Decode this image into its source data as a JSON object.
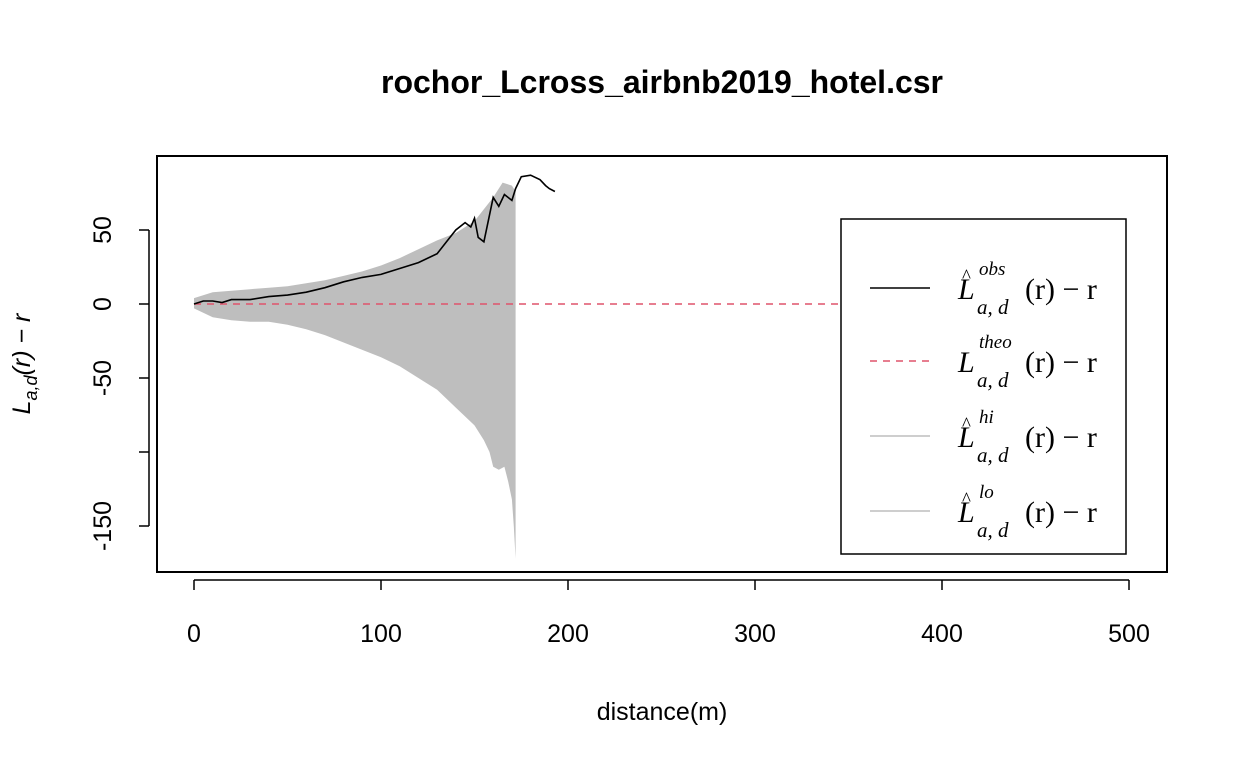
{
  "chart_data": {
    "type": "line",
    "title": "rochor_Lcross_airbnb2019_hotel.csr",
    "xlabel": "distance(m)",
    "ylabel": "L_{a,d}(r) - r",
    "xlim": [
      0,
      500
    ],
    "ylim": [
      -180,
      90
    ],
    "x_ticks": [
      0,
      100,
      200,
      300,
      400,
      500
    ],
    "x_tick_labels": [
      "0",
      "100",
      "200",
      "300",
      "400",
      "500"
    ],
    "y_ticks": [
      -150,
      -100,
      -50,
      0,
      50
    ],
    "y_tick_labels": [
      "-150",
      "",
      "-50",
      "0",
      "50"
    ],
    "grid": false,
    "legend_position": "right",
    "colors": {
      "obs": "#000000",
      "theo": "#DF536B",
      "envelope": "#BEBEBE"
    },
    "series": [
      {
        "name": "obs",
        "legend_math": {
          "base": "L",
          "hat": true,
          "sub": "a, d",
          "sup": "obs",
          "tail": "(r) − r"
        },
        "style": "solid",
        "x": [
          0,
          5,
          10,
          15,
          20,
          30,
          40,
          50,
          60,
          70,
          80,
          90,
          100,
          110,
          120,
          130,
          135,
          140,
          145,
          148,
          150,
          152,
          155,
          160,
          163,
          166,
          170,
          172,
          175,
          180,
          185,
          188,
          190,
          193
        ],
        "values": [
          0,
          2,
          2,
          1,
          3,
          3,
          5,
          6,
          8,
          11,
          15,
          18,
          20,
          24,
          28,
          34,
          42,
          50,
          55,
          52,
          58,
          45,
          42,
          72,
          66,
          74,
          70,
          78,
          86,
          87,
          84,
          80,
          78,
          76
        ]
      },
      {
        "name": "theo",
        "legend_math": {
          "base": "L",
          "hat": false,
          "sub": "a, d",
          "sup": "theo",
          "tail": "(r) − r"
        },
        "style": "dashed",
        "x": [
          0,
          470
        ],
        "values": [
          0,
          0
        ]
      },
      {
        "name": "hi",
        "legend_math": {
          "base": "L",
          "hat": true,
          "sub": "a, d",
          "sup": "hi",
          "tail": "(r) − r"
        },
        "style": "envelope",
        "x": [
          0,
          10,
          20,
          30,
          40,
          50,
          60,
          70,
          80,
          90,
          100,
          110,
          120,
          130,
          140,
          150,
          160,
          165,
          170,
          172
        ],
        "values": [
          4,
          8,
          9,
          10,
          11,
          12,
          14,
          16,
          19,
          22,
          26,
          31,
          37,
          43,
          48,
          56,
          72,
          82,
          80,
          76
        ]
      },
      {
        "name": "lo",
        "legend_math": {
          "base": "L",
          "hat": true,
          "sub": "a, d",
          "sup": "lo",
          "tail": "(r) − r"
        },
        "style": "envelope",
        "x": [
          0,
          10,
          20,
          30,
          40,
          50,
          60,
          70,
          80,
          90,
          100,
          110,
          120,
          130,
          140,
          150,
          155,
          158,
          160,
          163,
          166,
          168,
          170,
          171,
          172
        ],
        "values": [
          -3,
          -9,
          -11,
          -12,
          -12,
          -14,
          -17,
          -21,
          -26,
          -31,
          -36,
          -42,
          -50,
          -58,
          -70,
          -82,
          -92,
          -100,
          -110,
          -112,
          -110,
          -120,
          -132,
          -150,
          -172
        ]
      }
    ]
  }
}
